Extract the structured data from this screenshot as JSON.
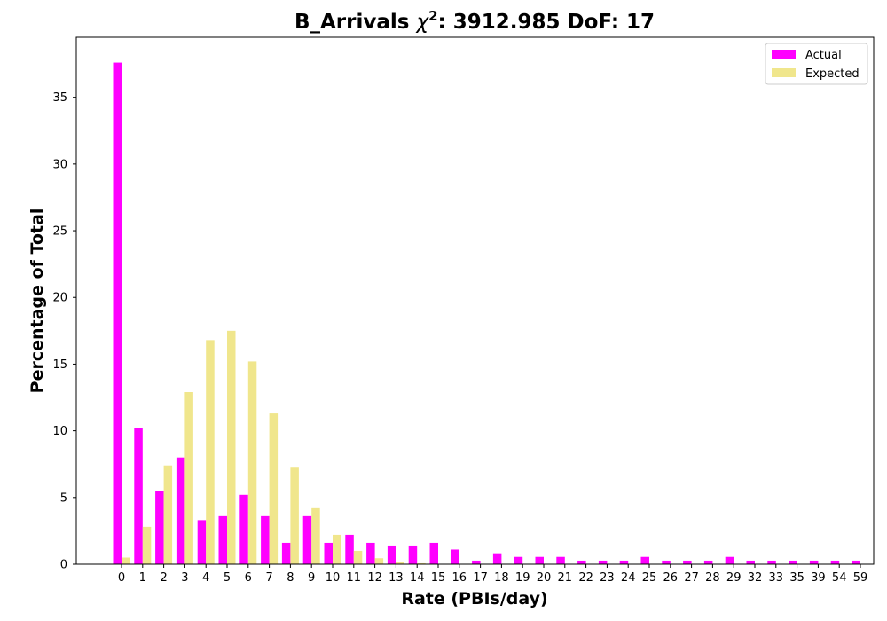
{
  "chart_data": {
    "type": "bar",
    "title_prefix": "B_Arrivals ",
    "title_chi": "χ",
    "title_sup": "2",
    "title_suffix": ": 3912.985 DoF: 17",
    "xlabel": "Rate (PBIs/day)",
    "ylabel": "Percentage of Total",
    "ylim": [
      0,
      39.5
    ],
    "yticks": [
      0,
      5,
      10,
      15,
      20,
      25,
      30,
      35
    ],
    "grid": false,
    "legend_position": "top-right",
    "categories": [
      "0",
      "1",
      "2",
      "3",
      "4",
      "5",
      "6",
      "7",
      "8",
      "9",
      "10",
      "11",
      "12",
      "13",
      "14",
      "15",
      "16",
      "17",
      "18",
      "19",
      "20",
      "21",
      "22",
      "23",
      "24",
      "25",
      "26",
      "27",
      "28",
      "29",
      "32",
      "33",
      "35",
      "39",
      "54",
      "59"
    ],
    "series": [
      {
        "name": "Actual",
        "color": "#ff00ff",
        "values": [
          37.6,
          10.2,
          5.5,
          8.0,
          3.3,
          3.6,
          5.2,
          3.6,
          1.6,
          3.6,
          1.6,
          2.2,
          1.6,
          1.4,
          1.4,
          1.6,
          1.1,
          0.27,
          0.82,
          0.55,
          0.55,
          0.55,
          0.27,
          0.27,
          0.27,
          0.55,
          0.27,
          0.27,
          0.27,
          0.55,
          0.27,
          0.27,
          0.27,
          0.27,
          0.27,
          0.27
        ]
      },
      {
        "name": "Expected",
        "color": "#f0e68c",
        "values": [
          0.5,
          2.8,
          7.4,
          12.9,
          16.8,
          17.5,
          15.2,
          11.3,
          7.3,
          4.2,
          2.2,
          1.0,
          0.45,
          0.18,
          0.07,
          0.02,
          0.01,
          0.002,
          0.0,
          0.0,
          0.0,
          0.0,
          0.0,
          0.0,
          0.0,
          0.0,
          0.0,
          0.0,
          0.0,
          0.0,
          0.0,
          0.0,
          0.0,
          0.0,
          0.0,
          0.0
        ]
      }
    ]
  }
}
